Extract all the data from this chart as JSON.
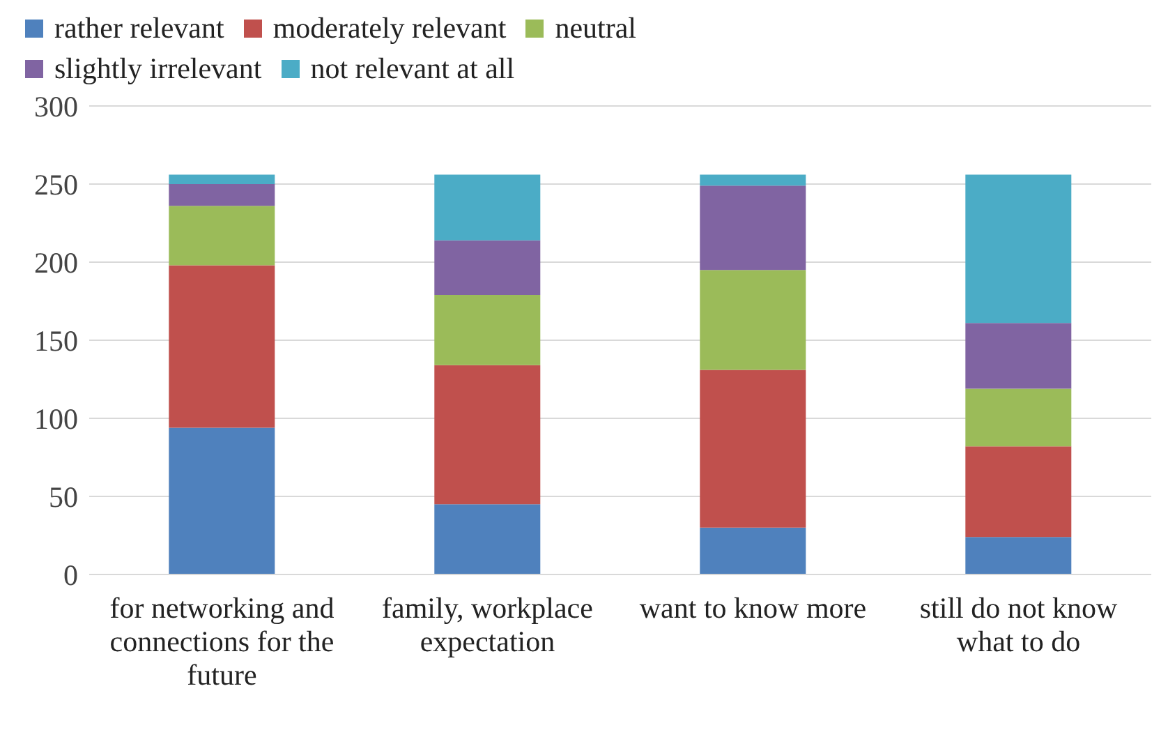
{
  "chart_data": {
    "type": "bar",
    "stacked": true,
    "categories": [
      "for networking and connections for the future",
      "family, workplace expectation",
      "want to know more",
      "still do not know what to do"
    ],
    "series": [
      {
        "name": "rather relevant",
        "color": "#4f81bd",
        "values": [
          94,
          45,
          30,
          24
        ]
      },
      {
        "name": "moderately relevant",
        "color": "#c0504d",
        "values": [
          104,
          89,
          101,
          58
        ]
      },
      {
        "name": "neutral",
        "color": "#9bbb59",
        "values": [
          38,
          45,
          64,
          37
        ]
      },
      {
        "name": "slightly irrelevant",
        "color": "#8064a2",
        "values": [
          14,
          35,
          54,
          42
        ]
      },
      {
        "name": "not relevant at all",
        "color": "#4bacc6",
        "values": [
          6,
          42,
          7,
          95
        ]
      }
    ],
    "ylim": [
      0,
      300
    ],
    "yticks": [
      0,
      50,
      100,
      150,
      200,
      250,
      300
    ],
    "grid": "y",
    "legend": "top left"
  }
}
